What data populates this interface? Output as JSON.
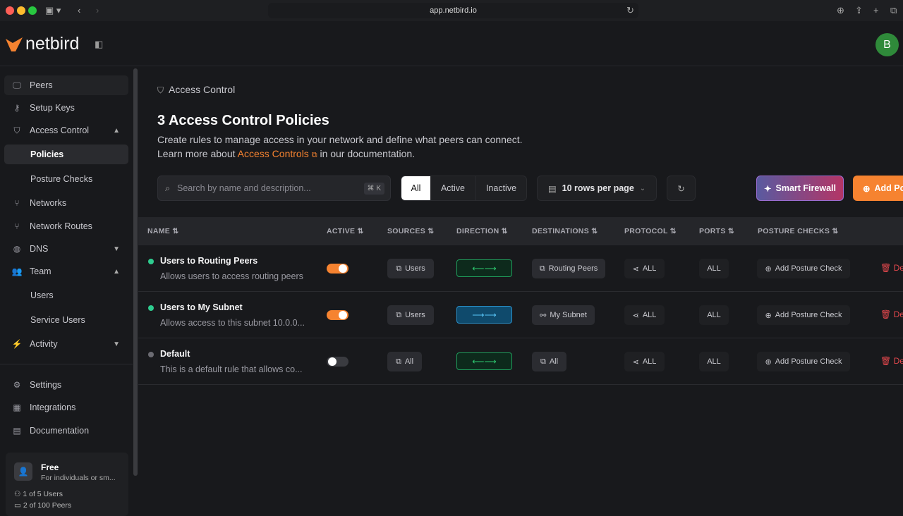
{
  "browser": {
    "url": "app.netbird.io"
  },
  "app": {
    "logo": "netbird",
    "avatar": "B"
  },
  "sidebar": {
    "items": [
      {
        "label": "Peers",
        "icon": "monitor-icon"
      },
      {
        "label": "Setup Keys",
        "icon": "key-icon"
      },
      {
        "label": "Access Control",
        "icon": "shield-icon"
      },
      {
        "label": "Policies"
      },
      {
        "label": "Posture Checks"
      },
      {
        "label": "Networks",
        "icon": "network-icon"
      },
      {
        "label": "Network Routes",
        "icon": "route-icon"
      },
      {
        "label": "DNS",
        "icon": "globe-icon"
      },
      {
        "label": "Team",
        "icon": "users-icon"
      },
      {
        "label": "Users"
      },
      {
        "label": "Service Users"
      },
      {
        "label": "Activity",
        "icon": "activity-icon"
      },
      {
        "label": "Settings",
        "icon": "gear-icon"
      },
      {
        "label": "Integrations",
        "icon": "grid-icon"
      },
      {
        "label": "Documentation",
        "icon": "book-icon"
      }
    ],
    "plan": {
      "name": "Free",
      "desc": "For individuals or sm...",
      "users": "1 of 5 Users",
      "peers": "2 of 100 Peers"
    }
  },
  "main": {
    "breadcrumb": "Access Control",
    "title": "3 Access Control Policies",
    "desc1": "Create rules to manage access in your network and define what peers can connect.",
    "desc2_pre": "Learn more about",
    "desc2_link": "Access Controls",
    "desc2_post": "in our documentation.",
    "search_placeholder": "Search by name and description...",
    "search_shortcut": "⌘ K",
    "filters": [
      "All",
      "Active",
      "Inactive"
    ],
    "rows_per_page": "10 rows per page",
    "smart_firewall": "Smart Firewall",
    "add_policy": "Add Policy",
    "columns": [
      "NAME",
      "ACTIVE",
      "SOURCES",
      "DIRECTION",
      "DESTINATIONS",
      "PROTOCOL",
      "PORTS",
      "POSTURE CHECKS"
    ],
    "rows": [
      {
        "name": "Users to Routing Peers",
        "desc": "Allows users to access routing peers",
        "active": true,
        "source": "Users",
        "direction": "bidirectional",
        "destination": "Routing Peers",
        "protocol": "ALL",
        "ports": "ALL",
        "posture": "Add Posture Check",
        "delete": "Delete"
      },
      {
        "name": "Users to My Subnet",
        "desc": "Allows access to this subnet 10.0.0...",
        "active": true,
        "source": "Users",
        "direction": "one-way",
        "destination": "My Subnet",
        "protocol": "ALL",
        "ports": "ALL",
        "posture": "Add Posture Check",
        "delete": "Delete"
      },
      {
        "name": "Default",
        "desc": "This is a default rule that allows co...",
        "active": false,
        "source": "All",
        "direction": "bidirectional",
        "destination": "All",
        "protocol": "ALL",
        "ports": "ALL",
        "posture": "Add Posture Check",
        "delete": "Delete"
      }
    ]
  },
  "colors": {
    "accent": "#f68330",
    "active": "#2ecc8f",
    "delete": "#e5484d"
  }
}
